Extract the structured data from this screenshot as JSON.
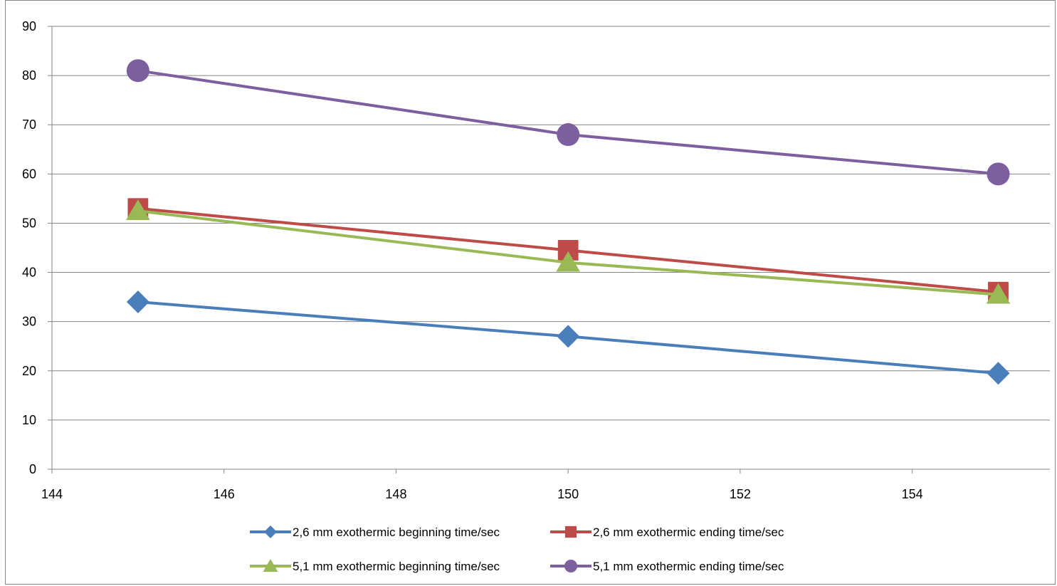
{
  "chart_data": {
    "type": "line",
    "title": "",
    "xlabel": "",
    "ylabel": "",
    "x": [
      145,
      150,
      155
    ],
    "xlim": [
      144,
      155.6
    ],
    "ylim": [
      0,
      90
    ],
    "x_ticks": [
      144,
      146,
      148,
      150,
      152,
      154
    ],
    "y_ticks": [
      0,
      10,
      20,
      30,
      40,
      50,
      60,
      70,
      80,
      90
    ],
    "grid": "horizontal",
    "legend_position": "bottom",
    "series": [
      {
        "name": "2,6 mm exothermic beginning time/sec",
        "values": [
          34,
          27,
          19.5
        ],
        "color": "#4a7ebb",
        "marker": "diamond"
      },
      {
        "name": "2,6 mm exothermic ending time/sec",
        "values": [
          53,
          44.5,
          36
        ],
        "color": "#be4b48",
        "marker": "square"
      },
      {
        "name": "5,1 mm exothermic beginning time/sec",
        "values": [
          52.5,
          42,
          35.5
        ],
        "color": "#98b954",
        "marker": "triangle"
      },
      {
        "name": "5,1 mm exothermic ending time/sec",
        "values": [
          81,
          68,
          60
        ],
        "color": "#7d5fa0",
        "marker": "circle"
      }
    ]
  }
}
